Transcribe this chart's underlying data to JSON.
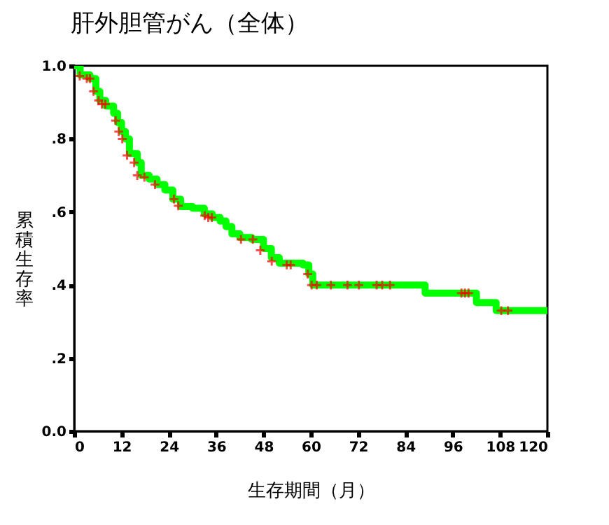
{
  "chart_data": {
    "type": "step",
    "title": "肝外胆管がん（全体）",
    "xlabel": "生存期間（月）",
    "ylabel": "累積生存率",
    "xlim": [
      0,
      120
    ],
    "xticks": [
      0,
      12,
      24,
      36,
      48,
      60,
      72,
      84,
      96,
      108,
      120
    ],
    "ylim": [
      0,
      1
    ],
    "yticks": [
      {
        "value": 0,
        "label": "0.0"
      },
      {
        "value": 0.2,
        "label": ".2"
      },
      {
        "value": 0.4,
        "label": ".4"
      },
      {
        "value": 0.6,
        "label": ".6"
      },
      {
        "value": 0.8,
        "label": ".8"
      },
      {
        "value": 1,
        "label": "1.0"
      }
    ],
    "grid": false,
    "series": [
      {
        "color": "#00ff00",
        "line_style": "solid",
        "marker": "none",
        "x": [
          0,
          1.5,
          4,
          5.5,
          6.5,
          8,
          10,
          11,
          12,
          13,
          14,
          16,
          17,
          19,
          21,
          23,
          25,
          27,
          30,
          33,
          35,
          37,
          38.5,
          40,
          42,
          45,
          48,
          50,
          52,
          58,
          59.5,
          60.5,
          89,
          102,
          107,
          120
        ],
        "values": [
          1.0,
          0.975,
          0.965,
          0.93,
          0.905,
          0.89,
          0.87,
          0.845,
          0.82,
          0.8,
          0.76,
          0.735,
          0.7,
          0.69,
          0.675,
          0.66,
          0.635,
          0.615,
          0.61,
          0.595,
          0.585,
          0.575,
          0.56,
          0.54,
          0.53,
          0.525,
          0.5,
          0.475,
          0.46,
          0.455,
          0.43,
          0.4,
          0.378,
          0.352,
          0.33,
          0.33
        ]
      },
      {
        "type": "scatter",
        "color": "#ff0000",
        "marker": "cross",
        "x": [
          1.4,
          3.2,
          4.0,
          4.9,
          6.2,
          7.0,
          7.9,
          10.5,
          11.3,
          12.2,
          13.4,
          15.2,
          16,
          17.8,
          20.5,
          25.3,
          26.4,
          33.1,
          34.0,
          34.9,
          42.3,
          45.3,
          47.2,
          50.1,
          53.9,
          54.9,
          59.2,
          60.2,
          61.5,
          65.1,
          69.3,
          72.2,
          76.7,
          78.1,
          80.1,
          98.2,
          99.1,
          100,
          108.3,
          110
        ],
        "values": [
          0.972,
          0.965,
          0.965,
          0.93,
          0.905,
          0.895,
          0.895,
          0.85,
          0.82,
          0.8,
          0.755,
          0.735,
          0.7,
          0.695,
          0.675,
          0.635,
          0.617,
          0.59,
          0.585,
          0.585,
          0.525,
          0.525,
          0.495,
          0.465,
          0.455,
          0.455,
          0.43,
          0.4,
          0.4,
          0.4,
          0.4,
          0.4,
          0.4,
          0.4,
          0.4,
          0.378,
          0.378,
          0.378,
          0.33,
          0.33
        ]
      }
    ]
  }
}
